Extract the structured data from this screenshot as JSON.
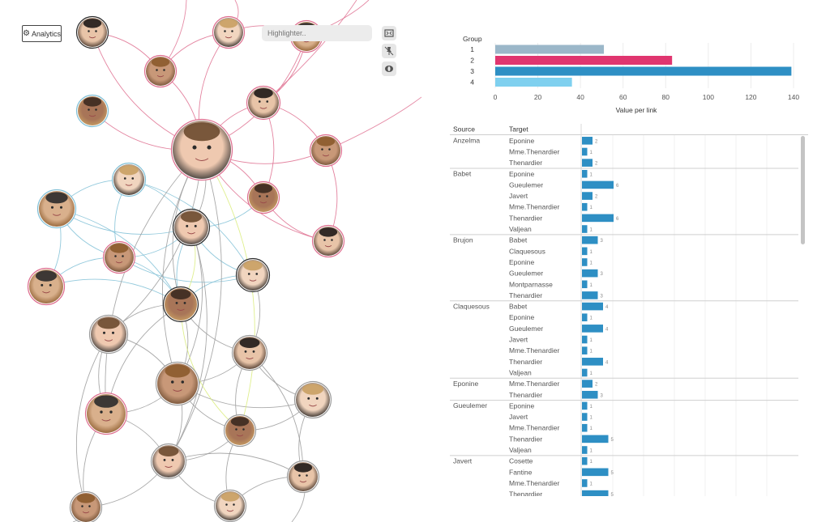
{
  "toolbar": {
    "analytics_label": "Analytics",
    "highlighter_placeholder": "Highlighter..",
    "tools": [
      "fit-screen-icon",
      "pin-icon",
      "reset-icon"
    ]
  },
  "colors": {
    "accent": "#2f8fc5",
    "group1": "#9bb7c9",
    "group2": "#e0356f",
    "group3": "#2e8fc4",
    "group4": "#7fd0ef",
    "edge_pink": "#de6d8e",
    "edge_blue": "#7fbfd6",
    "edge_gray": "#9a9a9a",
    "edge_yellow": "#d9ec7a"
  },
  "chart_data": [
    {
      "type": "bar",
      "orientation": "horizontal",
      "legend_title": "Group",
      "categories": [
        "1",
        "2",
        "3",
        "4"
      ],
      "values": [
        51,
        83,
        139,
        36
      ],
      "xlabel": "Value per link",
      "xlim": [
        0,
        140
      ],
      "xticks": [
        0,
        20,
        40,
        60,
        80,
        100,
        120,
        140
      ]
    },
    {
      "type": "table",
      "columns": [
        "Source",
        "Target"
      ],
      "groups": [
        {
          "source": "Anzelma",
          "rows": [
            [
              "Eponine",
              2
            ],
            [
              "Mme.Thenardier",
              1
            ],
            [
              "Thenardier",
              2
            ]
          ]
        },
        {
          "source": "Babet",
          "rows": [
            [
              "Eponine",
              1
            ],
            [
              "Gueulemer",
              6
            ],
            [
              "Javert",
              2
            ],
            [
              "Mme.Thenardier",
              1
            ],
            [
              "Thenardier",
              6
            ],
            [
              "Valjean",
              1
            ]
          ]
        },
        {
          "source": "Brujon",
          "rows": [
            [
              "Babet",
              3
            ],
            [
              "Claquesous",
              1
            ],
            [
              "Eponine",
              1
            ],
            [
              "Gueulemer",
              3
            ],
            [
              "Montparnasse",
              1
            ],
            [
              "Thenardier",
              3
            ]
          ]
        },
        {
          "source": "Claquesous",
          "rows": [
            [
              "Babet",
              4
            ],
            [
              "Eponine",
              1
            ],
            [
              "Gueulemer",
              4
            ],
            [
              "Javert",
              1
            ],
            [
              "Mme.Thenardier",
              1
            ],
            [
              "Thenardier",
              4
            ],
            [
              "Valjean",
              1
            ]
          ]
        },
        {
          "source": "Eponine",
          "rows": [
            [
              "Mme.Thenardier",
              2
            ],
            [
              "Thenardier",
              3
            ]
          ]
        },
        {
          "source": "Gueulemer",
          "rows": [
            [
              "Eponine",
              1
            ],
            [
              "Javert",
              1
            ],
            [
              "Mme.Thenardier",
              1
            ],
            [
              "Thenardier",
              5
            ],
            [
              "Valjean",
              1
            ]
          ]
        },
        {
          "source": "Javert",
          "rows": [
            [
              "Cosette",
              1
            ],
            [
              "Fantine",
              5
            ],
            [
              "Mme.Thenardier",
              1
            ],
            [
              "Thenardier",
              5
            ]
          ]
        }
      ]
    }
  ]
}
